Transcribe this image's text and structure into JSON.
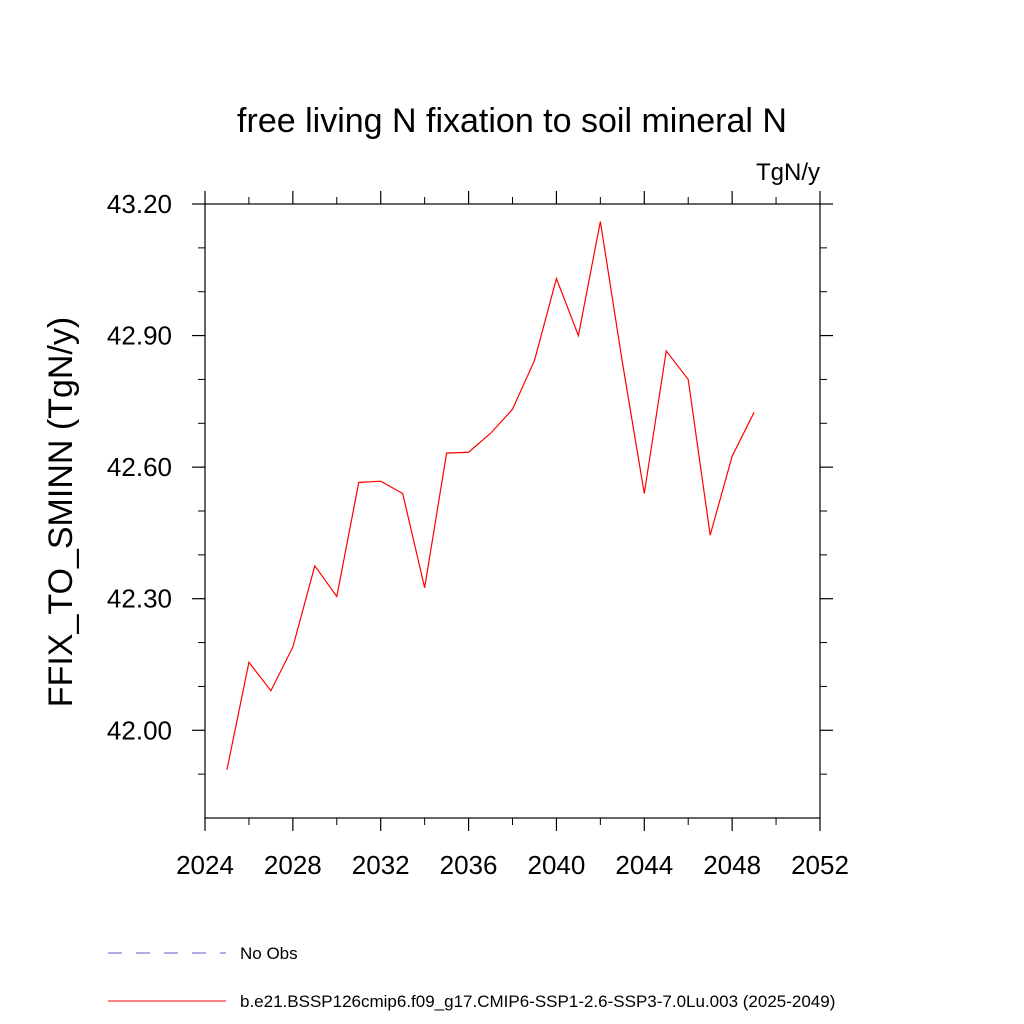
{
  "chart_data": {
    "type": "line",
    "title": "free living N fixation to soil mineral N",
    "units": "TgN/y",
    "xlabel": "",
    "ylabel": "FFIX_TO_SMINN  (TgN/y)",
    "xlim": [
      2024,
      2052
    ],
    "ylim": [
      41.8,
      43.2
    ],
    "xticks": [
      2024,
      2028,
      2032,
      2036,
      2040,
      2044,
      2048,
      2052
    ],
    "xtick_labels": [
      "2024",
      "2028",
      "2032",
      "2036",
      "2040",
      "2044",
      "2048",
      "2052"
    ],
    "xminor_step": 2,
    "yticks": [
      42.0,
      42.3,
      42.6,
      42.9,
      43.2
    ],
    "ytick_labels": [
      "42.00",
      "42.30",
      "42.60",
      "42.90",
      "43.20"
    ],
    "yminor_step": 0.1,
    "grid": false,
    "series": [
      {
        "name": "b.e21.BSSP126cmip6.f09_g17.CMIP6-SSP1-2.6-SSP3-7.0Lu.003 (2025-2049)",
        "color": "#ff0000",
        "dash": "solid",
        "x": [
          2025,
          2026,
          2027,
          2028,
          2029,
          2030,
          2031,
          2032,
          2033,
          2034,
          2035,
          2036,
          2037,
          2038,
          2039,
          2040,
          2041,
          2042,
          2043,
          2044,
          2045,
          2046,
          2047,
          2048,
          2049
        ],
        "values": [
          41.91,
          42.155,
          42.09,
          42.19,
          42.375,
          42.305,
          42.565,
          42.568,
          42.54,
          42.325,
          42.632,
          42.634,
          42.677,
          42.732,
          42.843,
          43.03,
          42.9,
          43.16,
          42.84,
          42.54,
          42.865,
          42.8,
          42.445,
          42.625,
          42.725
        ]
      }
    ],
    "legend": [
      {
        "label": "No Obs",
        "color": "#6a5acd",
        "dash": "dashed"
      },
      {
        "label": "b.e21.BSSP126cmip6.f09_g17.CMIP6-SSP1-2.6-SSP3-7.0Lu.003 (2025-2049)",
        "color": "#ff0000",
        "dash": "solid"
      }
    ],
    "legend_position": "bottom-left"
  }
}
